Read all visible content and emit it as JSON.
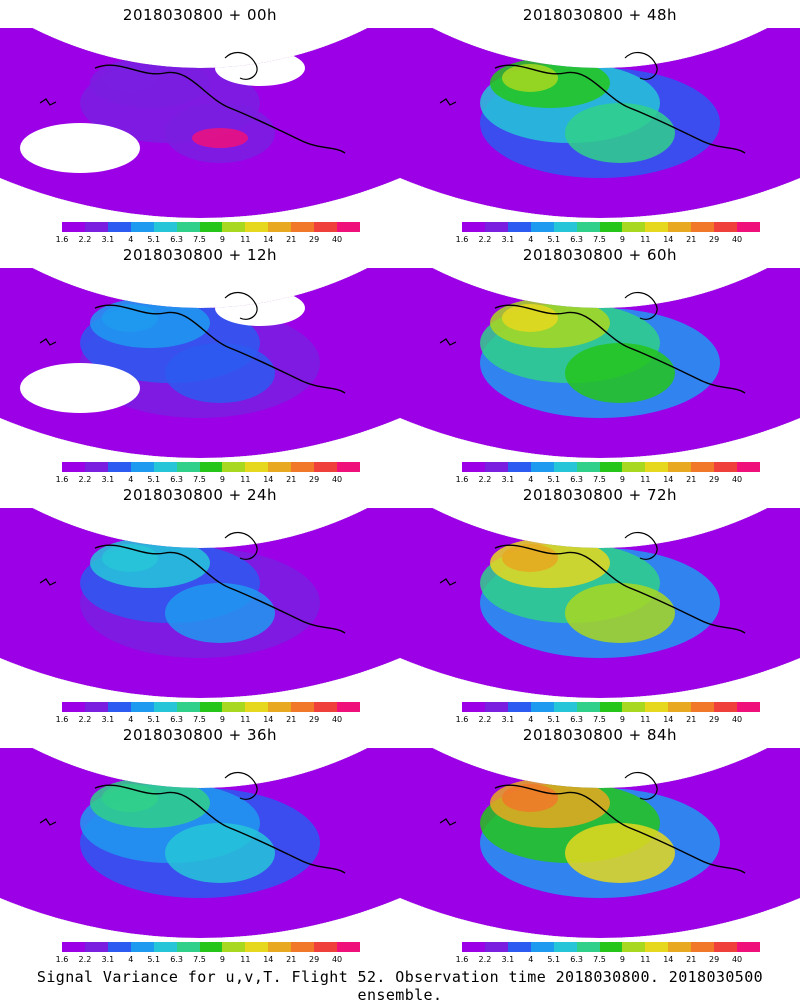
{
  "panels": [
    {
      "title": "2018030800  +  00h",
      "level": 0.1
    },
    {
      "title": "2018030800  +  48h",
      "level": 0.55
    },
    {
      "title": "2018030800  +  12h",
      "level": 0.25
    },
    {
      "title": "2018030800  +  60h",
      "level": 0.65
    },
    {
      "title": "2018030800  +  24h",
      "level": 0.35
    },
    {
      "title": "2018030800  +  72h",
      "level": 0.75
    },
    {
      "title": "2018030800  +  36h",
      "level": 0.45
    },
    {
      "title": "2018030800  +  84h",
      "level": 0.85
    }
  ],
  "colorbar": {
    "ticks": [
      "1.6",
      "2.2",
      "3.1",
      "4",
      "5.1",
      "6.3",
      "7.5",
      "9",
      "11",
      "14",
      "21",
      "29",
      "40"
    ],
    "colors": [
      "#9b00e6",
      "#7a1ee0",
      "#2b5bf0",
      "#1e9af0",
      "#26c6d8",
      "#30d08a",
      "#25c51a",
      "#a8d820",
      "#e6d81e",
      "#e8a820",
      "#f07828",
      "#f0403c",
      "#f0107a"
    ]
  },
  "footer": "Signal Variance for u,v,T. Flight 52. Observation time 2018030800. 2018030500 ensemble."
}
